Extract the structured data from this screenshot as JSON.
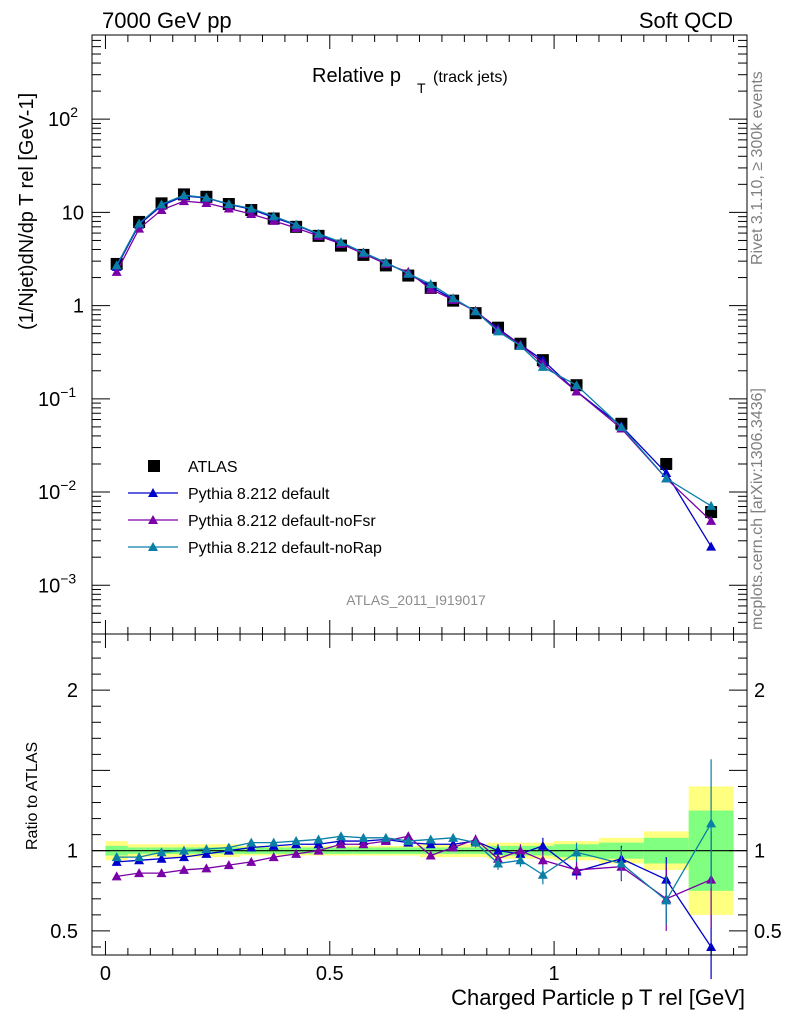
{
  "header": {
    "left": "7000 GeV pp",
    "right": "Soft QCD"
  },
  "side": {
    "rivet": "Rivet 3.1.10, ≥ 300k events",
    "mcplots": "mcplots.cern.ch [arXiv:1306.3436]"
  },
  "analysis_id": "ATLAS_2011_I919017",
  "colors": {
    "atlas": "#000000",
    "default": "#0000cc",
    "noFsr": "#7a00a8",
    "noRap": "#0a7fa6",
    "band_yellow": "#ffff80",
    "band_green": "#80ff80"
  },
  "chart_data": [
    {
      "type": "scatter",
      "title_main": "Relative p",
      "title_sub": "T",
      "title_extra": "(track jets)",
      "ylabel": "(1/Njet)dN/dp T rel [GeV-1]",
      "yscale": "log",
      "ylim": [
        0.0003,
        800
      ],
      "xlim": [
        -0.03,
        1.43
      ],
      "yticklabels": [
        {
          "value": 100,
          "base": "10",
          "exp": "2"
        },
        {
          "value": 10,
          "base": "10",
          "exp": ""
        },
        {
          "value": 1,
          "base": "1",
          "exp": ""
        },
        {
          "value": 0.1,
          "base": "10",
          "exp": "−1"
        },
        {
          "value": 0.01,
          "base": "10",
          "exp": "−2"
        },
        {
          "value": 0.001,
          "base": "10",
          "exp": "−3"
        }
      ],
      "x": [
        0.025,
        0.075,
        0.125,
        0.175,
        0.225,
        0.275,
        0.325,
        0.375,
        0.425,
        0.475,
        0.525,
        0.575,
        0.625,
        0.675,
        0.725,
        0.775,
        0.825,
        0.875,
        0.925,
        0.975,
        1.05,
        1.15,
        1.25,
        1.35
      ],
      "x_bin_edges": [
        0.0,
        0.05,
        0.1,
        0.15,
        0.2,
        0.25,
        0.3,
        0.35,
        0.4,
        0.45,
        0.5,
        0.55,
        0.6,
        0.65,
        0.7,
        0.75,
        0.8,
        0.85,
        0.9,
        0.95,
        1.0,
        1.1,
        1.2,
        1.3,
        1.4
      ],
      "series": [
        {
          "name": "ATLAS",
          "marker": "square",
          "values": [
            2.8,
            7.9,
            12.5,
            15.6,
            14.7,
            12.3,
            10.6,
            8.6,
            7.0,
            5.6,
            4.4,
            3.5,
            2.7,
            2.1,
            1.55,
            1.13,
            0.83,
            0.58,
            0.39,
            0.26,
            0.14,
            0.054,
            0.02,
            0.0061
          ]
        },
        {
          "name": "Pythia 8.212 default",
          "marker": "triangle",
          "values": [
            2.6,
            7.4,
            11.8,
            15.0,
            14.3,
            12.2,
            10.8,
            8.8,
            7.3,
            5.8,
            4.7,
            3.7,
            2.9,
            2.2,
            1.6,
            1.17,
            0.87,
            0.57,
            0.38,
            0.26,
            0.12,
            0.051,
            0.016,
            0.0026
          ]
        },
        {
          "name": "Pythia 8.212 default-noFsr",
          "marker": "triangle",
          "values": [
            2.3,
            6.7,
            10.6,
            13.2,
            12.6,
            11.0,
            9.6,
            8.1,
            6.8,
            5.6,
            4.6,
            3.6,
            2.8,
            2.3,
            1.5,
            1.15,
            0.88,
            0.55,
            0.38,
            0.24,
            0.12,
            0.048,
            0.014,
            0.0049
          ]
        },
        {
          "name": "Pythia 8.212 default-noRap",
          "marker": "triangle",
          "values": [
            2.7,
            7.6,
            12.2,
            15.3,
            14.4,
            12.3,
            11.0,
            9.1,
            7.4,
            5.9,
            4.8,
            3.7,
            2.9,
            2.2,
            1.7,
            1.2,
            0.87,
            0.53,
            0.37,
            0.22,
            0.14,
            0.05,
            0.014,
            0.0071
          ]
        }
      ],
      "legend": [
        "ATLAS",
        "Pythia 8.212 default",
        "Pythia 8.212 default-noFsr",
        "Pythia 8.212 default-noRap"
      ],
      "legend_placement": "lower-left"
    },
    {
      "type": "scatter",
      "ylabel": "Ratio to ATLAS",
      "xlabel": "Charged Particle p T rel [GeV]",
      "ylim": [
        0.35,
        2.35
      ],
      "xlim": [
        -0.03,
        1.43
      ],
      "xticklabels": [
        {
          "value": 0,
          "label": "0"
        },
        {
          "value": 0.5,
          "label": "0.5"
        },
        {
          "value": 1,
          "label": "1"
        }
      ],
      "yticklabels": [
        {
          "value": 2,
          "label": "2"
        },
        {
          "value": 1,
          "label": "1"
        },
        {
          "value": 0.5,
          "label": "0.5"
        }
      ],
      "band_yellow_halfwidth": [
        0.06,
        0.04,
        0.04,
        0.04,
        0.04,
        0.04,
        0.03,
        0.03,
        0.03,
        0.03,
        0.03,
        0.03,
        0.03,
        0.03,
        0.04,
        0.04,
        0.04,
        0.05,
        0.05,
        0.05,
        0.06,
        0.08,
        0.12,
        0.4
      ],
      "band_green_halfwidth": [
        0.03,
        0.02,
        0.02,
        0.02,
        0.02,
        0.02,
        0.02,
        0.02,
        0.02,
        0.02,
        0.02,
        0.02,
        0.02,
        0.02,
        0.02,
        0.02,
        0.02,
        0.03,
        0.03,
        0.03,
        0.04,
        0.05,
        0.08,
        0.25
      ],
      "series": [
        {
          "name": "Pythia 8.212 default",
          "values": [
            0.93,
            0.94,
            0.95,
            0.96,
            0.98,
            1.0,
            1.02,
            1.03,
            1.04,
            1.04,
            1.06,
            1.06,
            1.07,
            1.05,
            1.04,
            1.04,
            1.06,
            1.0,
            0.98,
            1.03,
            0.87,
            0.95,
            0.82,
            0.4
          ],
          "errors": [
            0.01,
            0.01,
            0.01,
            0.01,
            0.01,
            0.01,
            0.01,
            0.01,
            0.01,
            0.01,
            0.01,
            0.01,
            0.01,
            0.02,
            0.02,
            0.02,
            0.03,
            0.04,
            0.04,
            0.05,
            0.05,
            0.08,
            0.14,
            0.2
          ]
        },
        {
          "name": "Pythia 8.212 default-noFsr",
          "values": [
            0.84,
            0.86,
            0.86,
            0.88,
            0.89,
            0.91,
            0.93,
            0.96,
            0.98,
            1.0,
            1.04,
            1.04,
            1.06,
            1.09,
            0.97,
            1.02,
            1.07,
            0.95,
            1.0,
            0.94,
            0.88,
            0.9,
            0.7,
            0.82
          ],
          "errors": [
            0.02,
            0.01,
            0.01,
            0.01,
            0.01,
            0.01,
            0.01,
            0.01,
            0.01,
            0.01,
            0.01,
            0.01,
            0.02,
            0.02,
            0.02,
            0.02,
            0.03,
            0.04,
            0.04,
            0.05,
            0.06,
            0.09,
            0.2,
            0.3
          ]
        },
        {
          "name": "Pythia 8.212 default-noRap",
          "values": [
            0.96,
            0.96,
            0.99,
            1.0,
            1.01,
            1.02,
            1.05,
            1.05,
            1.06,
            1.07,
            1.09,
            1.08,
            1.08,
            1.06,
            1.07,
            1.08,
            1.05,
            0.92,
            0.94,
            0.85,
            0.99,
            0.92,
            0.69,
            1.17
          ],
          "errors": [
            0.02,
            0.01,
            0.01,
            0.01,
            0.01,
            0.01,
            0.01,
            0.01,
            0.01,
            0.01,
            0.01,
            0.01,
            0.02,
            0.02,
            0.02,
            0.02,
            0.03,
            0.04,
            0.04,
            0.06,
            0.06,
            0.1,
            0.15,
            0.4
          ]
        }
      ]
    }
  ]
}
